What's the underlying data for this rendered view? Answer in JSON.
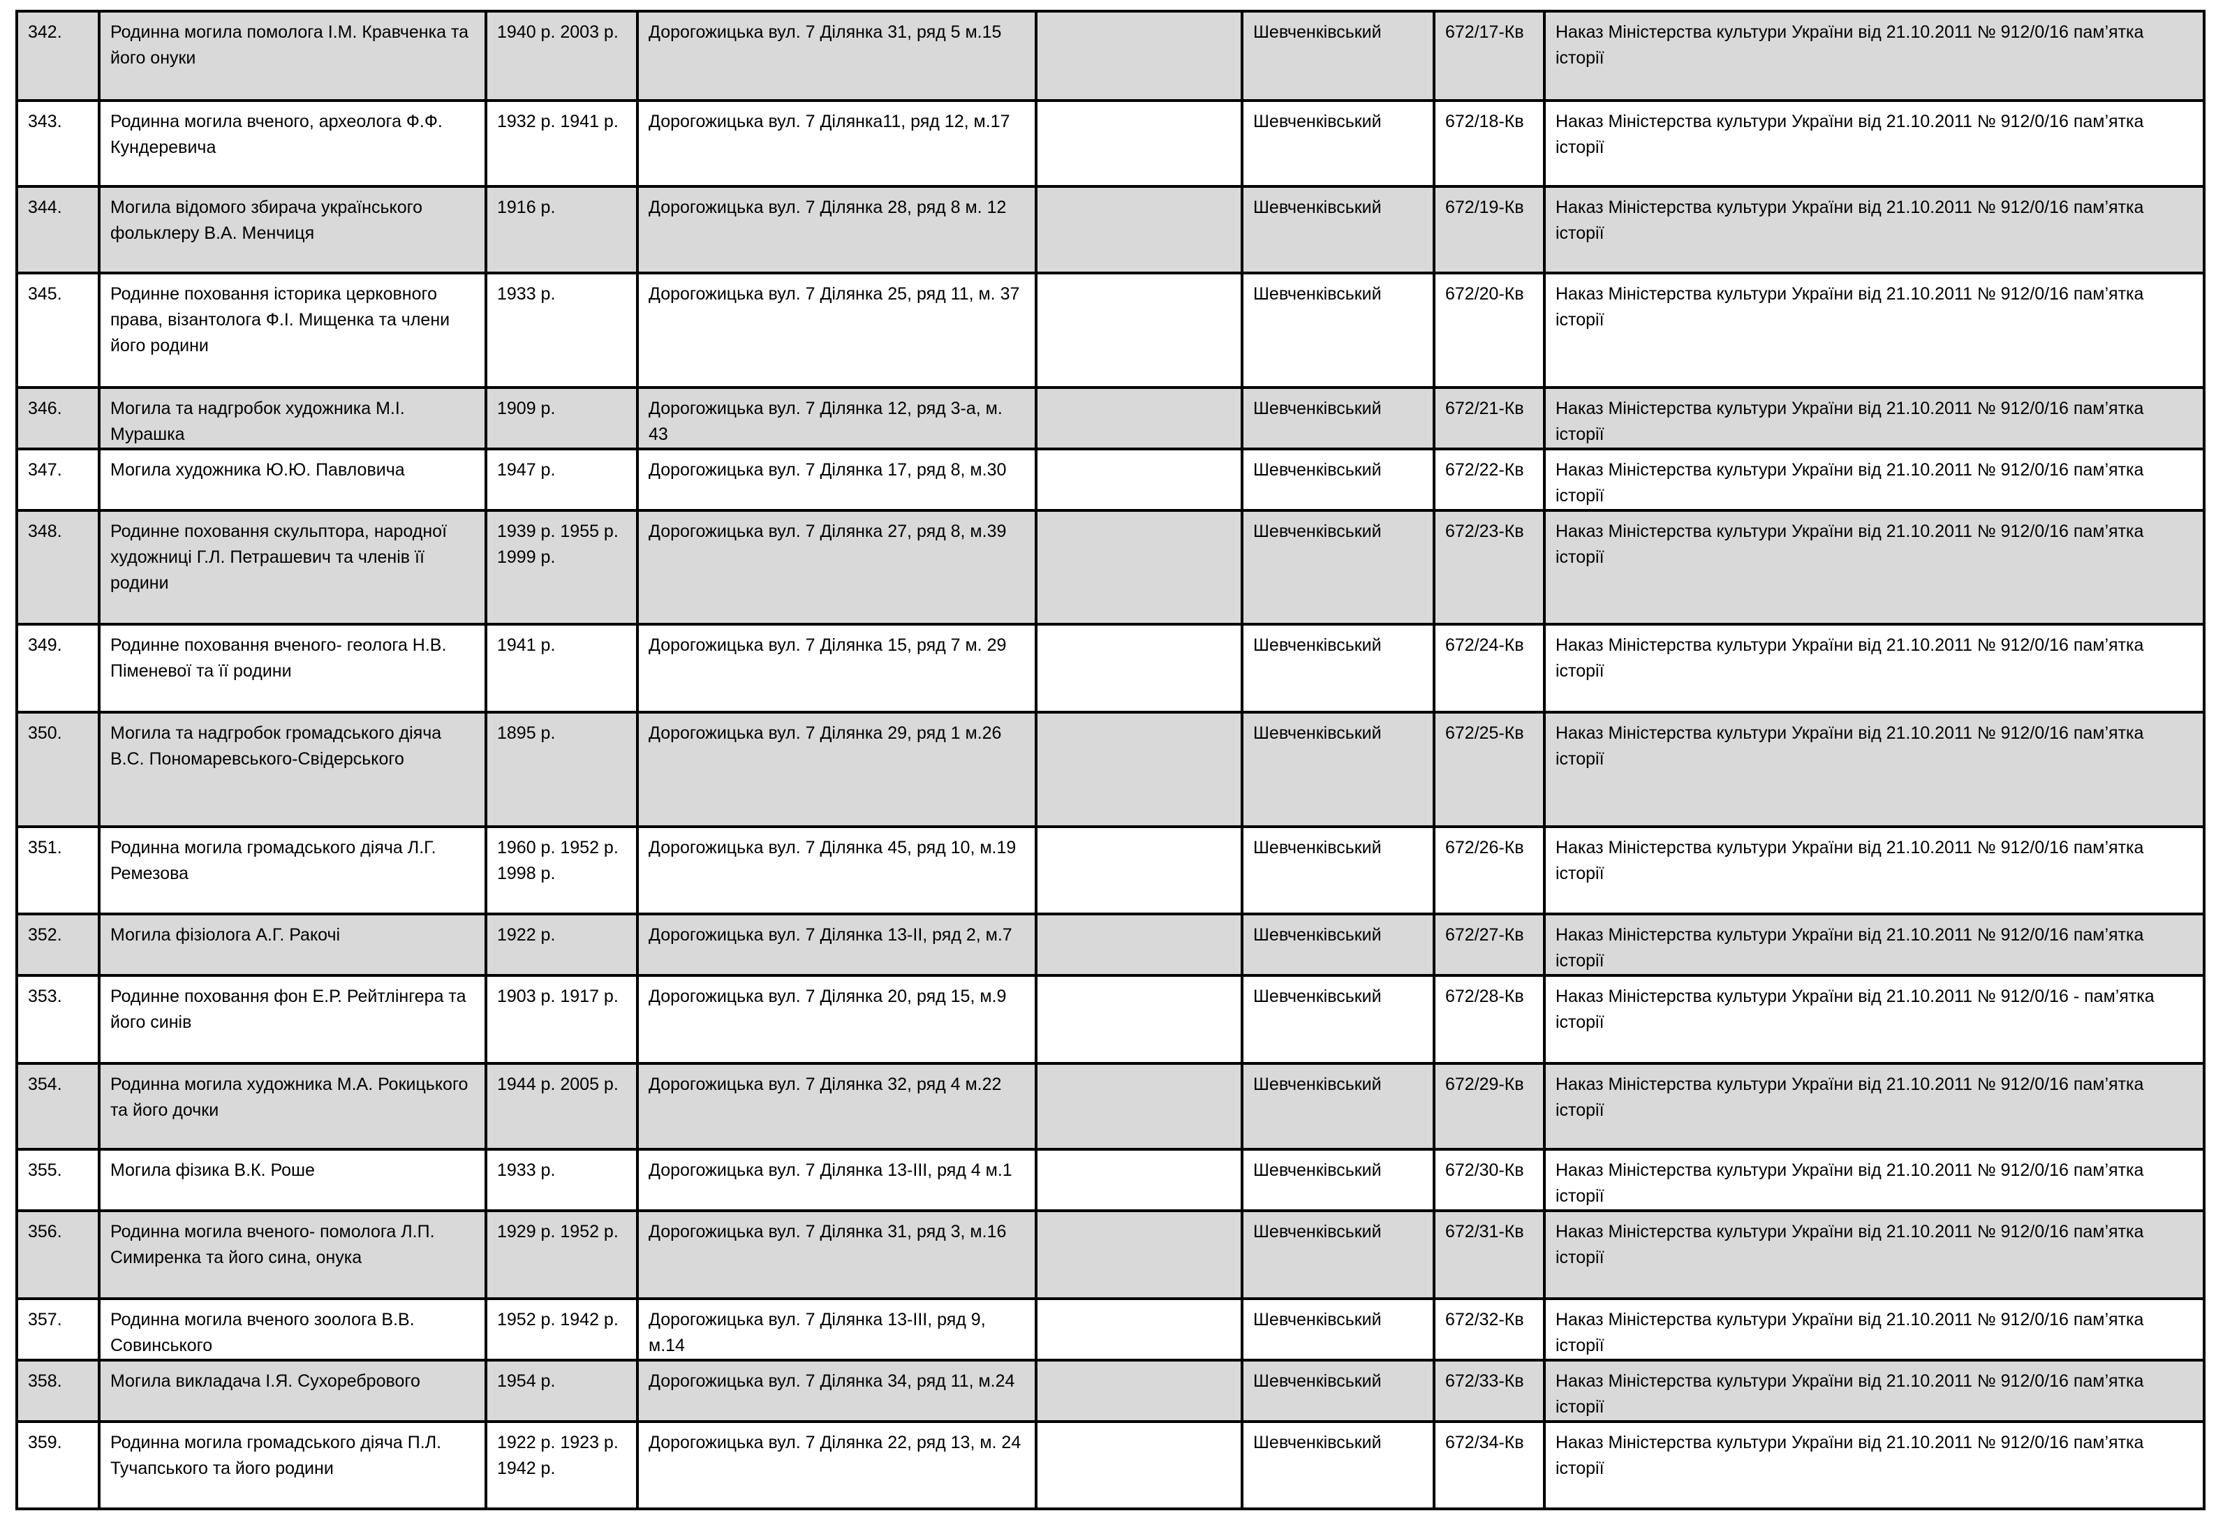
{
  "table": {
    "shade_color": "#d9d9d9",
    "rows": [
      {
        "num": "342.",
        "name": "Родинна могила помолога І.М. Кравченка та його онуки",
        "dates": "1940 р. 2003 р.",
        "address": "Дорогожицька вул. 7 Ділянка 31, ряд 5 м.15",
        "extra": "",
        "district": "Шевченківський",
        "code": "672/17-Кв",
        "decision": "Наказ Міністерства культури України від 21.10.2011 № 912/0/16 пам’ятка історії",
        "shaded": true
      },
      {
        "num": "343.",
        "name": "Родинна могила вченого, археолога Ф.Ф. Кундеревича",
        "dates": "1932 р. 1941 р.",
        "address": "Дорогожицька вул. 7 Ділянка11, ряд 12, м.17",
        "extra": "",
        "district": "Шевченківський",
        "code": "672/18-Кв",
        "decision": "Наказ Міністерства культури України від 21.10.2011 № 912/0/16 пам’ятка історії",
        "shaded": false
      },
      {
        "num": "344.",
        "name": "Могила відомого збирача українського фольклеру В.А. Менчиця",
        "dates": "1916 р.",
        "address": "Дорогожицька вул. 7 Ділянка 28, ряд 8 м. 12",
        "extra": "",
        "district": "Шевченківський",
        "code": "672/19-Кв",
        "decision": "Наказ Міністерства культури України від 21.10.2011 № 912/0/16 пам’ятка історії",
        "shaded": true
      },
      {
        "num": "345.",
        "name": "Родинне поховання історика церковного права, візантолога Ф.І. Мищенка та члени його родини",
        "dates": "1933 р.",
        "address": "Дорогожицька вул. 7 Ділянка 25, ряд 11, м. 37",
        "extra": "",
        "district": "Шевченківський",
        "code": "672/20-Кв",
        "decision": "Наказ Міністерства культури України від 21.10.2011 № 912/0/16 пам’ятка історії",
        "shaded": false
      },
      {
        "num": "346.",
        "name": "Могила та надгробок художника М.І. Мурашка",
        "dates": "1909 р.",
        "address": "Дорогожицька вул. 7 Ділянка 12, ряд 3-а, м. 43",
        "extra": "",
        "district": "Шевченківський",
        "code": "672/21-Кв",
        "decision": "Наказ Міністерства культури України від 21.10.2011 № 912/0/16 пам’ятка історії",
        "shaded": true
      },
      {
        "num": "347.",
        "name": "Могила художника Ю.Ю. Павловича",
        "dates": "1947 р.",
        "address": "Дорогожицька вул. 7 Ділянка 17, ряд 8, м.30",
        "extra": "",
        "district": "Шевченківський",
        "code": "672/22-Кв",
        "decision": "Наказ Міністерства культури України від 21.10.2011 № 912/0/16 пам’ятка історії",
        "shaded": false
      },
      {
        "num": "348.",
        "name": "Родинне поховання скульптора, народної художниці Г.Л. Петрашевич та членів її родини",
        "dates": "1939 р. 1955 р. 1999 р.",
        "address": "Дорогожицька вул. 7 Ділянка 27, ряд 8, м.39",
        "extra": "",
        "district": "Шевченківський",
        "code": "672/23-Кв",
        "decision": "Наказ Міністерства культури України від 21.10.2011 № 912/0/16 пам’ятка історії",
        "shaded": true
      },
      {
        "num": "349.",
        "name": "Родинне поховання вченого- геолога Н.В. Піменевої та її родини",
        "dates": "1941 р.",
        "address": "Дорогожицька вул. 7 Ділянка 15, ряд 7 м. 29",
        "extra": "",
        "district": "Шевченківський",
        "code": "672/24-Кв",
        "decision": "Наказ Міністерства культури України від 21.10.2011 № 912/0/16 пам’ятка історії",
        "shaded": false
      },
      {
        "num": "350.",
        "name": "Могила та надгробок громадського діяча В.С. Пономаревського-Свідерського",
        "dates": "1895 р.",
        "address": "Дорогожицька вул. 7 Ділянка 29, ряд 1 м.26",
        "extra": "",
        "district": "Шевченківський",
        "code": "672/25-Кв",
        "decision": "Наказ Міністерства культури України від 21.10.2011 № 912/0/16 пам’ятка історії",
        "shaded": true
      },
      {
        "num": "351.",
        "name": "Родинна могила громадського діяча Л.Г. Ремезова",
        "dates": "1960 р. 1952 р. 1998 р.",
        "address": "Дорогожицька вул. 7 Ділянка 45, ряд 10, м.19",
        "extra": "",
        "district": "Шевченківський",
        "code": "672/26-Кв",
        "decision": "Наказ Міністерства культури України від 21.10.2011 № 912/0/16 пам’ятка історії",
        "shaded": false
      },
      {
        "num": "352.",
        "name": "Могила фізіолога А.Г. Ракочі",
        "dates": "1922 р.",
        "address": "Дорогожицька вул. 7 Ділянка 13-ІІ, ряд 2, м.7",
        "extra": "",
        "district": "Шевченківський",
        "code": "672/27-Кв",
        "decision": "Наказ Міністерства культури України від 21.10.2011 № 912/0/16 пам’ятка історії",
        "shaded": true
      },
      {
        "num": "353.",
        "name": "Родинне поховання фон Е.Р. Рейтлінгера та його синів",
        "dates": "1903 р. 1917 р.",
        "address": "Дорогожицька вул. 7 Ділянка 20, ряд 15, м.9",
        "extra": "",
        "district": "Шевченківський",
        "code": "672/28-Кв",
        "decision": "Наказ Міністерства культури України від 21.10.2011 № 912/0/16 - пам’ятка історії",
        "shaded": false
      },
      {
        "num": "354.",
        "name": "Родинна могила художника М.А. Рокицького та його дочки",
        "dates": "1944 р. 2005 р.",
        "address": "Дорогожицька вул. 7 Ділянка 32, ряд 4 м.22",
        "extra": "",
        "district": "Шевченківський",
        "code": "672/29-Кв",
        "decision": "Наказ Міністерства культури України від 21.10.2011 № 912/0/16 пам’ятка історії",
        "shaded": true
      },
      {
        "num": "355.",
        "name": "Могила фізика В.К. Роше",
        "dates": "1933 р.",
        "address": "Дорогожицька вул. 7 Ділянка 13-ІІІ, ряд 4 м.1",
        "extra": "",
        "district": "Шевченківський",
        "code": "672/30-Кв",
        "decision": "Наказ Міністерства культури України від 21.10.2011 № 912/0/16 пам’ятка історії",
        "shaded": false
      },
      {
        "num": "356.",
        "name": "Родинна могила вченого- помолога Л.П. Симиренка та його сина, онука",
        "dates": "1929 р. 1952 р.",
        "address": "Дорогожицька вул. 7 Ділянка 31, ряд 3, м.16",
        "extra": "",
        "district": "Шевченківський",
        "code": "672/31-Кв",
        "decision": "Наказ Міністерства культури України від 21.10.2011 № 912/0/16 пам’ятка історії",
        "shaded": true
      },
      {
        "num": "357.",
        "name": "Родинна могила вченого зоолога В.В. Совинського",
        "dates": "1952 р. 1942 р.",
        "address": "Дорогожицька вул. 7 Ділянка 13-ІІІ, ряд 9, м.14",
        "extra": "",
        "district": "Шевченківський",
        "code": "672/32-Кв",
        "decision": "Наказ Міністерства культури України від 21.10.2011 № 912/0/16 пам’ятка історії",
        "shaded": false
      },
      {
        "num": "358.",
        "name": "Могила викладача І.Я. Сухоребрового",
        "dates": "1954 р.",
        "address": "Дорогожицька вул. 7 Ділянка 34, ряд 11, м.24",
        "extra": "",
        "district": "Шевченківський",
        "code": "672/33-Кв",
        "decision": "Наказ Міністерства культури України від 21.10.2011 № 912/0/16 пам’ятка історії",
        "shaded": true
      },
      {
        "num": "359.",
        "name": "Родинна могила громадського діяча П.Л. Тучапського та його родини",
        "dates": "1922 р. 1923 р. 1942 р.",
        "address": "Дорогожицька вул. 7 Ділянка 22, ряд 13, м. 24",
        "extra": "",
        "district": "Шевченківський",
        "code": "672/34-Кв",
        "decision": "Наказ Міністерства культури України від 21.10.2011 № 912/0/16 пам’ятка історії",
        "shaded": false
      }
    ]
  }
}
